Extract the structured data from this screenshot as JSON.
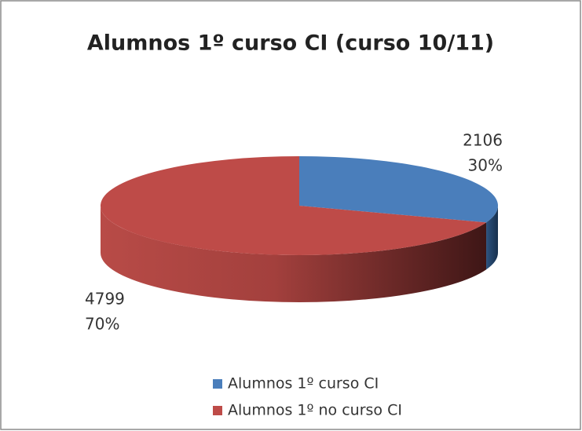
{
  "chart_data": {
    "type": "pie3d",
    "title": "Alumnos 1º curso CI (curso 10/11)",
    "categories": [
      "Alumnos 1º curso CI",
      "Alumnos 1º no curso CI"
    ],
    "values": [
      2106,
      4799
    ],
    "percentages": [
      30,
      70
    ],
    "percentage_labels": [
      "30%",
      "70%"
    ],
    "colors": [
      "#4a7ebb",
      "#be4b48"
    ],
    "legend": "bottom"
  }
}
